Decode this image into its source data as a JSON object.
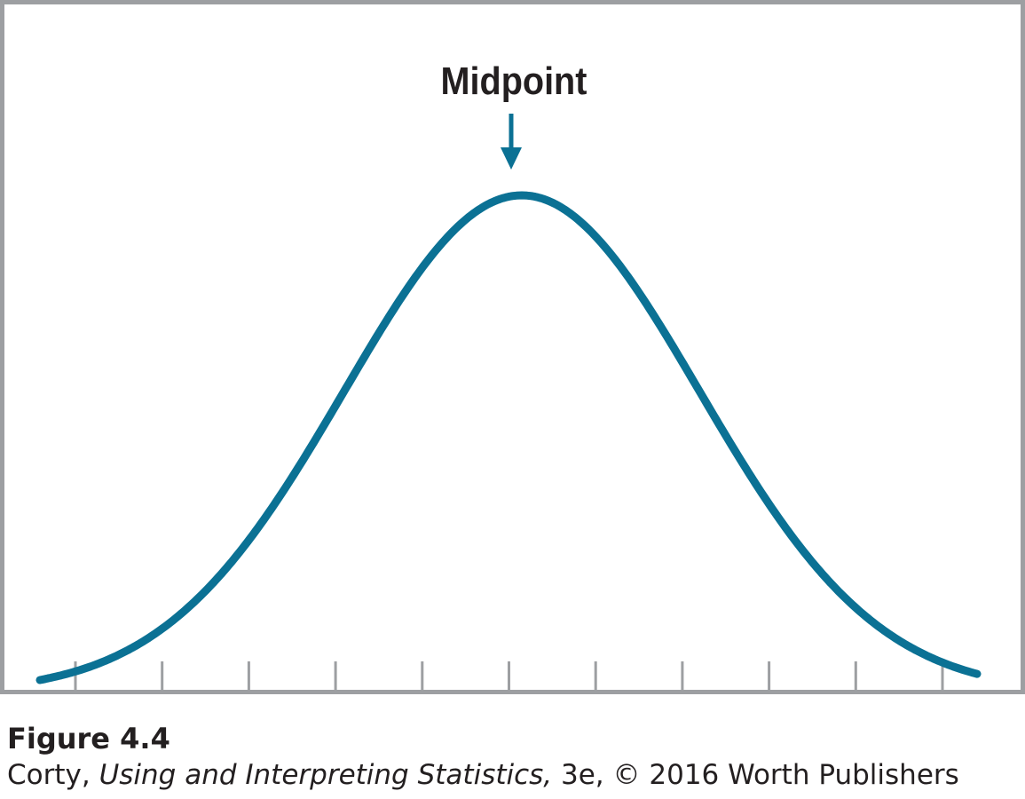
{
  "chart_data": {
    "type": "line",
    "title": "",
    "xlabel": "",
    "ylabel": "",
    "shape": "normal-curve",
    "annotation": {
      "label": "Midpoint",
      "points_to": "curve peak"
    },
    "x_tick_count": 11,
    "x_tick_labels": [],
    "grid": false,
    "colors": {
      "curve": "#0b7194",
      "arrow": "#0b7194",
      "frame": "#9d9fa2",
      "text": "#231f20"
    }
  },
  "caption": {
    "figure_label": "Figure 4.4",
    "author": "Corty, ",
    "book_title": "Using and Interpreting Statistics,",
    "edition_publisher": " 3e, © 2016 Worth Publishers"
  }
}
